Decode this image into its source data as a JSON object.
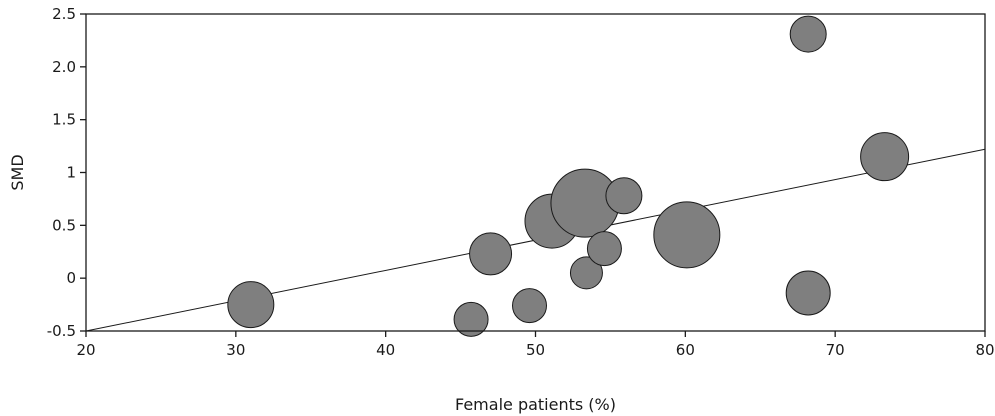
{
  "chart_data": {
    "type": "scatter",
    "xlabel": "Female patients (%)",
    "ylabel": "SMD",
    "xlim": [
      20,
      80
    ],
    "ylim": [
      -0.5,
      2.5
    ],
    "x_ticks": [
      20,
      30,
      40,
      50,
      60,
      70,
      80
    ],
    "y_ticks": [
      -0.5,
      0,
      0.5,
      1,
      1.5,
      2,
      2.5
    ],
    "x_tick_labels": [
      "20",
      "30",
      "40",
      "50",
      "60",
      "70",
      "80"
    ],
    "y_tick_labels": [
      "-0.5",
      "0",
      "0.5",
      "1",
      "1.5",
      "2.0",
      "2.5"
    ],
    "grid": false,
    "bubble_color": "#7f7f7f",
    "points": [
      {
        "x": 31.0,
        "y": -0.25,
        "weight": 23
      },
      {
        "x": 45.7,
        "y": -0.39,
        "weight": 17
      },
      {
        "x": 47.0,
        "y": 0.23,
        "weight": 21
      },
      {
        "x": 49.6,
        "y": -0.26,
        "weight": 17
      },
      {
        "x": 51.1,
        "y": 0.54,
        "weight": 27
      },
      {
        "x": 53.3,
        "y": 0.71,
        "weight": 34
      },
      {
        "x": 53.4,
        "y": 0.05,
        "weight": 16
      },
      {
        "x": 54.6,
        "y": 0.28,
        "weight": 17
      },
      {
        "x": 55.9,
        "y": 0.78,
        "weight": 18
      },
      {
        "x": 60.1,
        "y": 0.41,
        "weight": 33
      },
      {
        "x": 68.2,
        "y": 2.31,
        "weight": 18
      },
      {
        "x": 68.2,
        "y": -0.14,
        "weight": 22
      },
      {
        "x": 73.3,
        "y": 1.15,
        "weight": 24
      }
    ],
    "regression_line": {
      "x": [
        20,
        80
      ],
      "y": [
        -0.5,
        1.22
      ]
    }
  }
}
